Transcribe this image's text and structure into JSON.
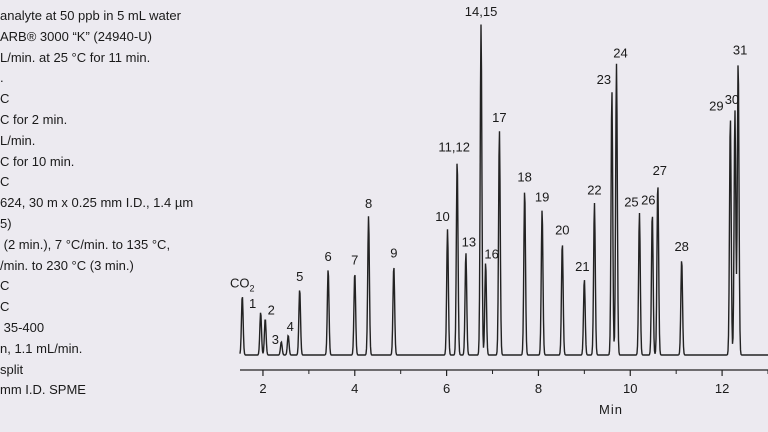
{
  "method_text": [
    "analyte at 50 ppb in 5 mL water",
    "ARB® 3000 “K” (24940-U)",
    "L/min. at 25 °C for 11 min.",
    ".",
    "C",
    "C for 2 min.",
    "L/min.",
    "C for 10 min.",
    "C",
    "624, 30 m x 0.25 mm I.D., 1.4 µm",
    "5)",
    " (2 min.), 7 °C/min. to 135 °C,",
    "/min. to 230 °C (3 min.)",
    "C",
    "C",
    " 35-400",
    "n, 1.1 mL/min.",
    "split",
    "mm I.D. SPME"
  ],
  "chart_data": {
    "type": "line",
    "title": "",
    "xlabel": "Min",
    "ylabel": "",
    "xlim": [
      1.5,
      13.0
    ],
    "ylim": [
      0,
      1.0
    ],
    "x_ticks": [
      2,
      4,
      6,
      8,
      10,
      12
    ],
    "grid": false,
    "line_color": "#222222",
    "peaks": [
      {
        "label": "CO2",
        "rt": 1.55,
        "height": 0.18
      },
      {
        "label": "1",
        "rt": 1.95,
        "height": 0.13
      },
      {
        "label": "2",
        "rt": 2.05,
        "height": 0.11
      },
      {
        "label": "3",
        "rt": 2.4,
        "height": 0.04
      },
      {
        "label": "4",
        "rt": 2.55,
        "height": 0.06
      },
      {
        "label": "5",
        "rt": 2.8,
        "height": 0.2
      },
      {
        "label": "6",
        "rt": 3.42,
        "height": 0.26
      },
      {
        "label": "7",
        "rt": 4.0,
        "height": 0.25
      },
      {
        "label": "8",
        "rt": 4.3,
        "height": 0.42
      },
      {
        "label": "9",
        "rt": 4.85,
        "height": 0.27
      },
      {
        "label": "10",
        "rt": 6.02,
        "height": 0.38
      },
      {
        "label": "11,12",
        "rt": 6.23,
        "height": 0.59
      },
      {
        "label": "13",
        "rt": 6.42,
        "height": 0.31
      },
      {
        "label": "14,15",
        "rt": 6.75,
        "height": 1.0
      },
      {
        "label": "16",
        "rt": 6.85,
        "height": 0.28
      },
      {
        "label": "17",
        "rt": 7.15,
        "height": 0.68
      },
      {
        "label": "18",
        "rt": 7.7,
        "height": 0.5
      },
      {
        "label": "19",
        "rt": 8.08,
        "height": 0.44
      },
      {
        "label": "20",
        "rt": 8.52,
        "height": 0.34
      },
      {
        "label": "21",
        "rt": 9.0,
        "height": 0.23
      },
      {
        "label": "22",
        "rt": 9.22,
        "height": 0.46
      },
      {
        "label": "23",
        "rt": 9.6,
        "height": 0.8
      },
      {
        "label": "24",
        "rt": 9.7,
        "height": 0.88
      },
      {
        "label": "25",
        "rt": 10.2,
        "height": 0.43
      },
      {
        "label": "26",
        "rt": 10.48,
        "height": 0.43
      },
      {
        "label": "27",
        "rt": 10.6,
        "height": 0.52
      },
      {
        "label": "28",
        "rt": 11.12,
        "height": 0.29
      },
      {
        "label": "29",
        "rt": 12.18,
        "height": 0.72
      },
      {
        "label": "30",
        "rt": 12.28,
        "height": 0.74
      },
      {
        "label": "31",
        "rt": 12.35,
        "height": 0.89
      }
    ]
  }
}
